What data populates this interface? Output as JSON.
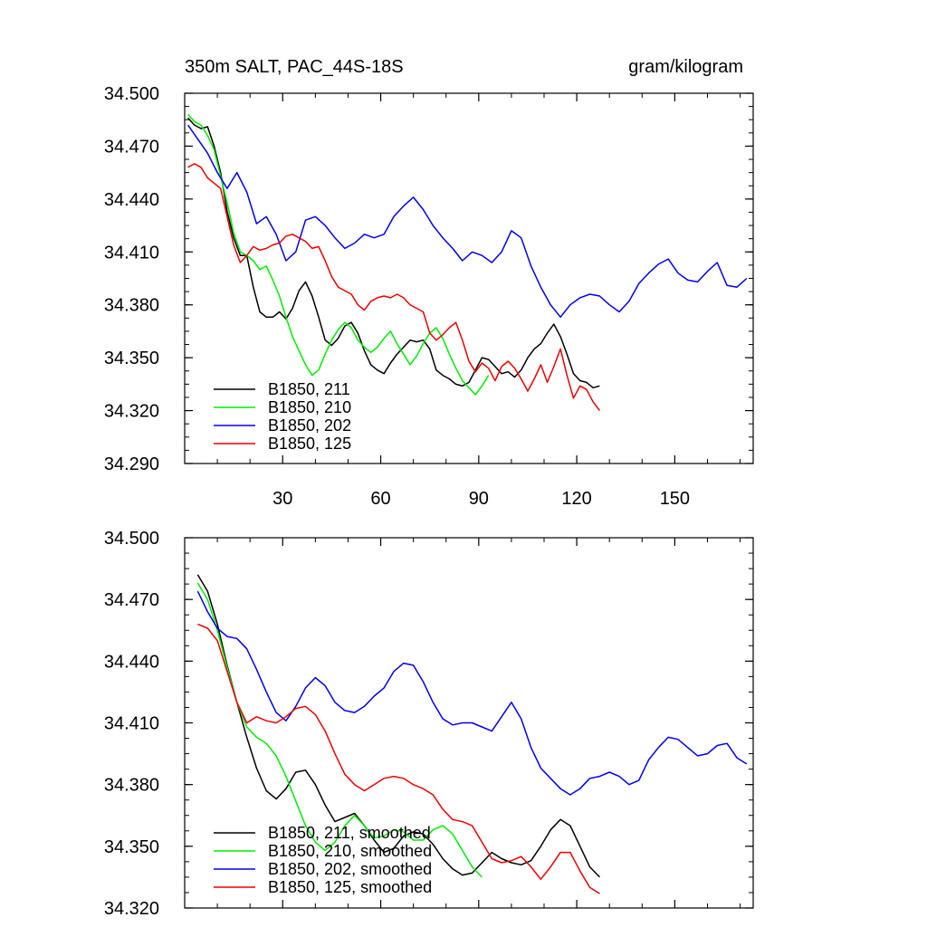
{
  "header": {
    "title": "350m SALT, PAC_44S-18S",
    "units": "gram/kilogram"
  },
  "chart_data": [
    {
      "type": "line",
      "panel": "top",
      "xlabel": "",
      "ylabel": "",
      "xlim": [
        0,
        174
      ],
      "ylim": [
        34.29,
        34.5
      ],
      "x_ticks": [
        30,
        60,
        90,
        120,
        150
      ],
      "y_ticks": [
        "34.290",
        "34.320",
        "34.350",
        "34.380",
        "34.410",
        "34.440",
        "34.470",
        "34.500"
      ],
      "legend": {
        "placement": "bottom-left"
      },
      "series": [
        {
          "name": "B1850, 211",
          "color": "#000000",
          "x": [
            1,
            3,
            5,
            7,
            9,
            11,
            13,
            15,
            17,
            19,
            21,
            23,
            25,
            27,
            29,
            31,
            33,
            35,
            37,
            39,
            41,
            43,
            45,
            47,
            49,
            51,
            53,
            55,
            57,
            59,
            61,
            63,
            65,
            67,
            69,
            71,
            73,
            75,
            77,
            79,
            81,
            83,
            85,
            87,
            89,
            91,
            93,
            95,
            97,
            99,
            101,
            103,
            105,
            107,
            109,
            111,
            113,
            115,
            117,
            119,
            121,
            123,
            125,
            127
          ],
          "values": [
            34.486,
            34.482,
            34.48,
            34.481,
            34.47,
            34.455,
            34.433,
            34.418,
            34.408,
            34.408,
            34.39,
            34.376,
            34.373,
            34.373,
            34.376,
            34.372,
            34.378,
            34.388,
            34.393,
            34.385,
            34.373,
            34.36,
            34.357,
            34.361,
            34.368,
            34.37,
            34.364,
            34.354,
            34.346,
            34.343,
            34.341,
            34.347,
            34.352,
            34.356,
            34.36,
            34.359,
            34.36,
            34.355,
            34.343,
            34.34,
            34.338,
            34.335,
            34.334,
            34.336,
            34.343,
            34.35,
            34.349,
            34.345,
            34.341,
            34.342,
            34.339,
            34.343,
            34.35,
            34.355,
            34.358,
            34.364,
            34.369,
            34.362,
            34.352,
            34.341,
            34.337,
            34.336,
            34.333,
            34.334
          ]
        },
        {
          "name": "B1850, 210",
          "color": "#00ee00",
          "x": [
            1,
            3,
            5,
            7,
            9,
            11,
            13,
            15,
            17,
            19,
            21,
            23,
            25,
            27,
            29,
            31,
            33,
            35,
            37,
            39,
            41,
            43,
            45,
            47,
            49,
            51,
            53,
            55,
            57,
            59,
            61,
            63,
            65,
            67,
            69,
            71,
            73,
            75,
            77,
            79,
            81,
            83,
            85,
            87,
            89,
            91,
            93
          ],
          "values": [
            34.488,
            34.484,
            34.482,
            34.476,
            34.468,
            34.453,
            34.438,
            34.421,
            34.41,
            34.408,
            34.405,
            34.4,
            34.402,
            34.394,
            34.385,
            34.373,
            34.362,
            34.354,
            34.346,
            34.34,
            34.343,
            34.352,
            34.36,
            34.366,
            34.37,
            34.367,
            34.36,
            34.356,
            34.353,
            34.356,
            34.361,
            34.365,
            34.358,
            34.352,
            34.346,
            34.351,
            34.358,
            34.364,
            34.367,
            34.361,
            34.352,
            34.344,
            34.337,
            34.333,
            34.329,
            34.334,
            34.34
          ]
        },
        {
          "name": "B1850, 202",
          "color": "#0000ee",
          "x": [
            1,
            4,
            7,
            10,
            13,
            16,
            19,
            22,
            25,
            28,
            31,
            34,
            37,
            40,
            43,
            46,
            49,
            52,
            55,
            58,
            61,
            64,
            67,
            70,
            73,
            76,
            79,
            82,
            85,
            88,
            91,
            94,
            97,
            100,
            103,
            106,
            109,
            112,
            115,
            118,
            121,
            124,
            127,
            130,
            133,
            136,
            139,
            142,
            145,
            148,
            151,
            154,
            157,
            160,
            163,
            166,
            169,
            172
          ],
          "values": [
            34.482,
            34.474,
            34.466,
            34.455,
            34.446,
            34.455,
            34.444,
            34.426,
            34.43,
            34.42,
            34.405,
            34.41,
            34.428,
            34.43,
            34.425,
            34.418,
            34.412,
            34.415,
            34.42,
            34.418,
            34.42,
            34.43,
            34.436,
            34.441,
            34.434,
            34.425,
            34.418,
            34.412,
            34.405,
            34.41,
            34.408,
            34.404,
            34.41,
            34.422,
            34.418,
            34.402,
            34.39,
            34.38,
            34.373,
            34.38,
            34.384,
            34.386,
            34.385,
            34.38,
            34.376,
            34.382,
            34.392,
            34.398,
            34.403,
            34.406,
            34.398,
            34.394,
            34.393,
            34.399,
            34.404,
            34.391,
            34.39,
            34.395
          ]
        },
        {
          "name": "B1850, 125",
          "color": "#ee0000",
          "x": [
            1,
            3,
            5,
            7,
            9,
            11,
            13,
            15,
            17,
            19,
            21,
            23,
            25,
            27,
            29,
            31,
            33,
            35,
            37,
            39,
            41,
            43,
            45,
            47,
            49,
            51,
            53,
            55,
            57,
            59,
            61,
            63,
            65,
            67,
            69,
            71,
            73,
            75,
            77,
            79,
            81,
            83,
            85,
            87,
            89,
            91,
            93,
            95,
            97,
            99,
            101,
            103,
            105,
            107,
            109,
            111,
            113,
            115,
            117,
            119,
            121,
            123,
            125,
            127
          ],
          "values": [
            34.458,
            34.46,
            34.458,
            34.452,
            34.449,
            34.446,
            34.43,
            34.414,
            34.404,
            34.408,
            34.413,
            34.411,
            34.412,
            34.414,
            34.415,
            34.419,
            34.42,
            34.418,
            34.416,
            34.412,
            34.413,
            34.405,
            34.396,
            34.39,
            34.388,
            34.386,
            34.38,
            34.377,
            34.382,
            34.384,
            34.385,
            34.384,
            34.386,
            34.384,
            34.38,
            34.378,
            34.376,
            34.364,
            34.36,
            34.363,
            34.367,
            34.37,
            34.36,
            34.348,
            34.342,
            34.347,
            34.344,
            34.337,
            34.345,
            34.348,
            34.344,
            34.338,
            34.331,
            34.338,
            34.346,
            34.336,
            34.345,
            34.355,
            34.34,
            34.327,
            34.334,
            34.332,
            34.325,
            34.32
          ]
        }
      ]
    },
    {
      "type": "line",
      "panel": "bottom",
      "xlabel": "",
      "ylabel": "",
      "xlim": [
        0,
        174
      ],
      "ylim": [
        34.32,
        34.5
      ],
      "x_ticks": [
        30,
        60,
        90,
        120,
        150
      ],
      "y_ticks": [
        "34.320",
        "34.350",
        "34.380",
        "34.410",
        "34.440",
        "34.470",
        "34.500"
      ],
      "legend": {
        "placement": "bottom-left"
      },
      "series": [
        {
          "name": "B1850, 211, smoothed",
          "color": "#000000",
          "x": [
            4,
            7,
            10,
            13,
            16,
            19,
            22,
            25,
            28,
            31,
            34,
            37,
            40,
            43,
            46,
            49,
            52,
            55,
            58,
            61,
            64,
            67,
            70,
            73,
            76,
            79,
            82,
            85,
            88,
            91,
            94,
            97,
            100,
            103,
            106,
            109,
            112,
            115,
            118,
            121,
            124,
            127
          ],
          "values": [
            34.482,
            34.474,
            34.458,
            34.438,
            34.42,
            34.403,
            34.388,
            34.377,
            34.373,
            34.378,
            34.386,
            34.387,
            34.38,
            34.37,
            34.362,
            34.364,
            34.366,
            34.36,
            34.353,
            34.347,
            34.349,
            34.355,
            34.357,
            34.356,
            34.351,
            34.344,
            34.339,
            34.336,
            34.337,
            34.342,
            34.347,
            34.344,
            34.342,
            34.341,
            34.343,
            34.35,
            34.358,
            34.363,
            34.36,
            34.35,
            34.34,
            34.335
          ]
        },
        {
          "name": "B1850, 210, smoothed",
          "color": "#00ee00",
          "x": [
            4,
            7,
            10,
            13,
            16,
            19,
            22,
            25,
            28,
            31,
            34,
            37,
            40,
            43,
            46,
            49,
            52,
            55,
            58,
            61,
            64,
            67,
            70,
            73,
            76,
            79,
            82,
            85,
            88,
            91
          ],
          "values": [
            34.478,
            34.47,
            34.455,
            34.437,
            34.42,
            34.408,
            34.403,
            34.4,
            34.394,
            34.384,
            34.372,
            34.36,
            34.352,
            34.348,
            34.352,
            34.36,
            34.365,
            34.36,
            34.354,
            34.355,
            34.358,
            34.357,
            34.353,
            34.353,
            34.358,
            34.36,
            34.356,
            34.348,
            34.34,
            34.335
          ]
        },
        {
          "name": "B1850, 202, smoothed",
          "color": "#0000ee",
          "x": [
            4,
            7,
            10,
            13,
            16,
            19,
            22,
            25,
            28,
            31,
            34,
            37,
            40,
            43,
            46,
            49,
            52,
            55,
            58,
            61,
            64,
            67,
            70,
            73,
            76,
            79,
            82,
            85,
            88,
            91,
            94,
            97,
            100,
            103,
            106,
            109,
            112,
            115,
            118,
            121,
            124,
            127,
            130,
            133,
            136,
            139,
            142,
            145,
            148,
            151,
            154,
            157,
            160,
            163,
            166,
            169,
            172
          ],
          "values": [
            34.474,
            34.464,
            34.456,
            34.452,
            34.451,
            34.446,
            34.436,
            34.425,
            34.415,
            34.411,
            34.418,
            34.427,
            34.432,
            34.428,
            34.42,
            34.416,
            34.415,
            34.418,
            34.423,
            34.427,
            34.435,
            34.439,
            34.438,
            34.43,
            34.42,
            34.412,
            34.409,
            34.41,
            34.41,
            34.408,
            34.406,
            34.413,
            34.42,
            34.412,
            34.398,
            34.388,
            34.383,
            34.378,
            34.375,
            34.378,
            34.383,
            34.384,
            34.386,
            34.384,
            34.38,
            34.382,
            34.392,
            34.398,
            34.403,
            34.402,
            34.398,
            34.394,
            34.395,
            34.399,
            34.4,
            34.393,
            34.39
          ]
        },
        {
          "name": "B1850, 125, smoothed",
          "color": "#ee0000",
          "x": [
            4,
            7,
            10,
            13,
            16,
            19,
            22,
            25,
            28,
            31,
            34,
            37,
            40,
            43,
            46,
            49,
            52,
            55,
            58,
            61,
            64,
            67,
            70,
            73,
            76,
            79,
            82,
            85,
            88,
            91,
            94,
            97,
            100,
            103,
            106,
            109,
            112,
            115,
            118,
            121,
            124,
            127
          ],
          "values": [
            34.458,
            34.456,
            34.45,
            34.435,
            34.42,
            34.41,
            34.413,
            34.411,
            34.41,
            34.413,
            34.417,
            34.418,
            34.414,
            34.406,
            34.395,
            34.385,
            34.38,
            34.377,
            34.38,
            34.383,
            34.384,
            34.383,
            34.38,
            34.378,
            34.375,
            34.368,
            34.363,
            34.362,
            34.36,
            34.352,
            34.344,
            34.342,
            34.343,
            34.345,
            34.34,
            34.334,
            34.34,
            34.347,
            34.347,
            34.338,
            34.33,
            34.327
          ]
        }
      ]
    }
  ]
}
